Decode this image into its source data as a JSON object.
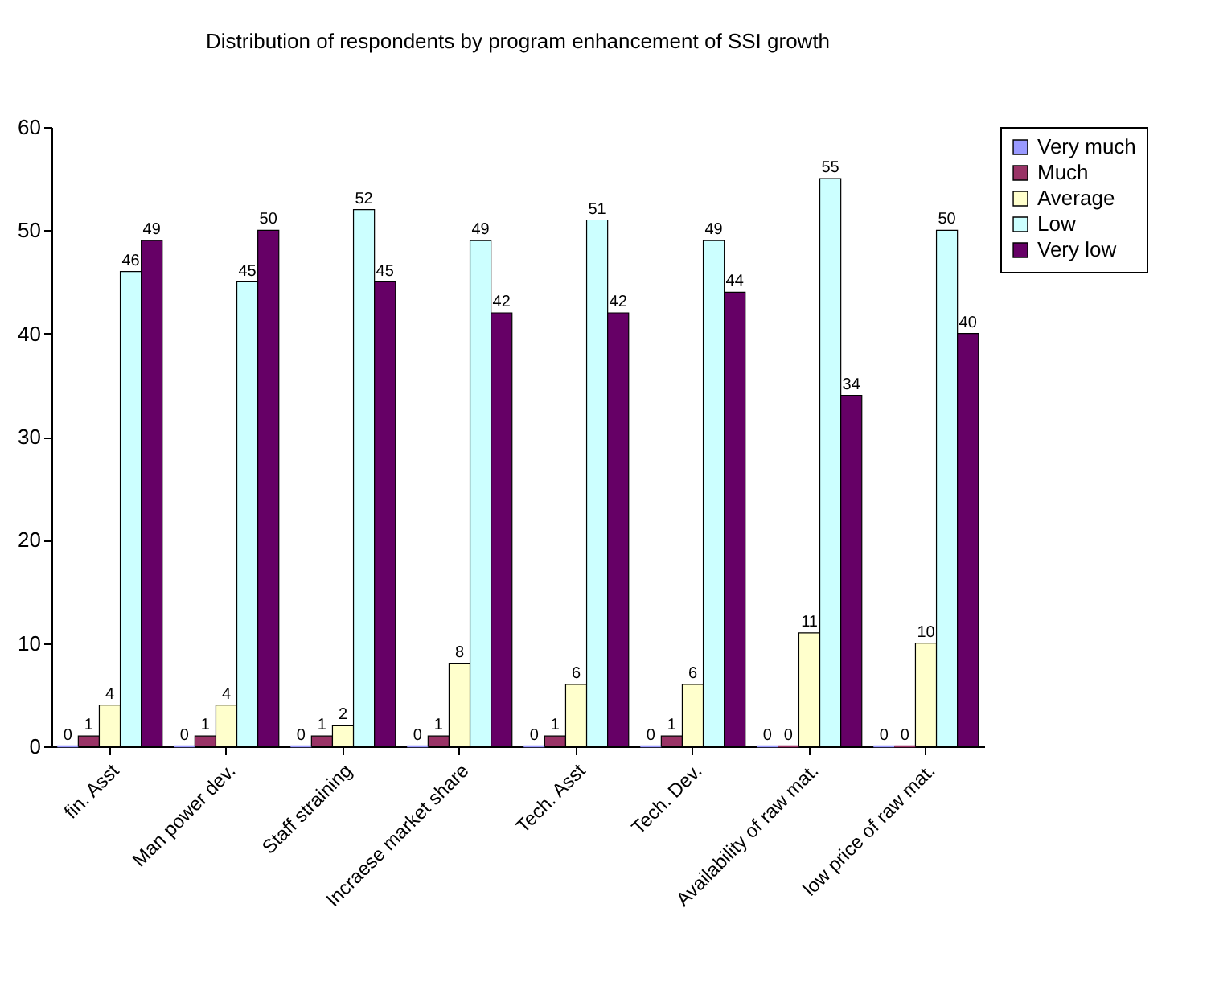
{
  "chart_data": {
    "type": "bar",
    "title": "Distribution of respondents by program enhancement of SSI growth",
    "categories": [
      "fin. Asst",
      "Man power dev.",
      "Staff straining",
      "Incraese market share",
      "Tech. Asst",
      "Tech. Dev.",
      "Availability of raw mat.",
      "low price of raw mat."
    ],
    "series": [
      {
        "name": "Very much",
        "color": "#9999ff",
        "values": [
          0,
          0,
          0,
          0,
          0,
          0,
          0,
          0
        ]
      },
      {
        "name": "Much",
        "color": "#993366",
        "values": [
          1,
          1,
          1,
          1,
          1,
          1,
          0,
          0
        ]
      },
      {
        "name": "Average",
        "color": "#ffffcc",
        "values": [
          4,
          4,
          2,
          8,
          6,
          6,
          11,
          10
        ]
      },
      {
        "name": "Low",
        "color": "#ccffff",
        "values": [
          46,
          45,
          52,
          49,
          51,
          49,
          55,
          50
        ]
      },
      {
        "name": "Very low",
        "color": "#660066",
        "values": [
          49,
          50,
          45,
          42,
          42,
          44,
          34,
          40
        ]
      }
    ],
    "ylim": [
      0,
      60
    ],
    "yticks": [
      0,
      10,
      20,
      30,
      40,
      50,
      60
    ],
    "grid": false,
    "legend": "right",
    "data_labels": true
  }
}
